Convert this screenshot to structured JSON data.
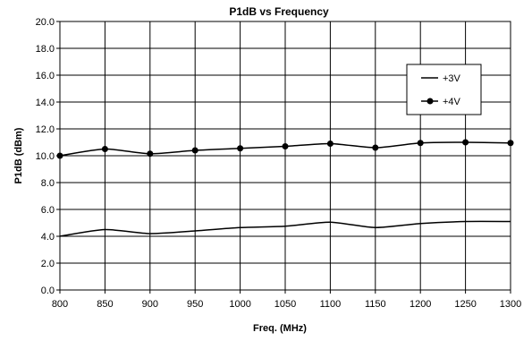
{
  "chart_data": {
    "type": "line",
    "title": "P1dB vs Frequency",
    "xlabel": "Freq. (MHz)",
    "ylabel": "P1dB (dBm)",
    "xlim": [
      800,
      1300
    ],
    "ylim": [
      0,
      20
    ],
    "x_ticks": [
      "800",
      "850",
      "900",
      "950",
      "1000",
      "1050",
      "1100",
      "1150",
      "1200",
      "1250",
      "1300"
    ],
    "y_ticks": [
      "0.0",
      "2.0",
      "4.0",
      "6.0",
      "8.0",
      "10.0",
      "12.0",
      "14.0",
      "16.0",
      "18.0",
      "20.0"
    ],
    "grid": true,
    "legend_position": "top-right",
    "x": [
      800,
      850,
      900,
      950,
      1000,
      1050,
      1100,
      1150,
      1200,
      1250,
      1300
    ],
    "series": [
      {
        "name": "+3V",
        "color": "#000000",
        "marker": "none",
        "values": [
          4.0,
          4.5,
          4.2,
          4.4,
          4.65,
          4.75,
          5.05,
          4.65,
          4.95,
          5.1,
          5.1
        ]
      },
      {
        "name": "+4V",
        "color": "#000000",
        "marker": "circle",
        "values": [
          10.0,
          10.5,
          10.15,
          10.4,
          10.55,
          10.7,
          10.9,
          10.6,
          10.95,
          11.0,
          10.95
        ]
      }
    ]
  }
}
